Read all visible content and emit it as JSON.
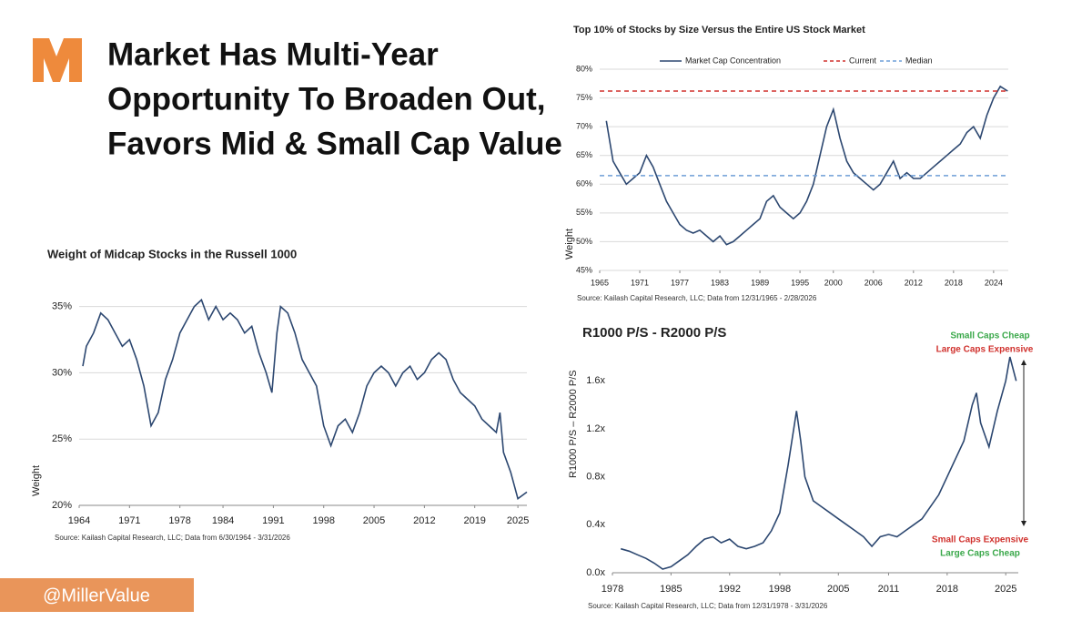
{
  "slide_title": [
    "Market Has Multi-Year",
    "Opportunity To Broaden Out,",
    "Favors Mid & Small Cap Value"
  ],
  "handle": "@MillerValue",
  "chart_data": [
    {
      "type": "line",
      "title": "Weight of Midcap Stocks in the Russell 1000",
      "y_label": "Weight",
      "source": "Source: Kailash Capital Research, LLC; Data from 6/30/1964 - 3/31/2026",
      "color": "#2c4770",
      "grid": true,
      "xlim": [
        1964,
        2026.25
      ],
      "xticks": [
        1964,
        1971,
        1978,
        1984,
        1991,
        1998,
        2005,
        2012,
        2019,
        2025
      ],
      "ylim": [
        20,
        36
      ],
      "yticks": [
        {
          "value": 20,
          "label": "20%"
        },
        {
          "value": 25,
          "label": "25%"
        },
        {
          "value": 30,
          "label": "30%"
        },
        {
          "value": 35,
          "label": "35%"
        }
      ],
      "x": [
        1964.5,
        1965,
        1966,
        1967,
        1968,
        1969,
        1970,
        1971,
        1972,
        1973,
        1974,
        1975,
        1976,
        1977,
        1978,
        1979,
        1980,
        1981,
        1982,
        1983,
        1984,
        1985,
        1986,
        1987,
        1988,
        1989,
        1990,
        1990.8,
        1991.5,
        1992,
        1993,
        1994,
        1995,
        1996,
        1997,
        1998,
        1999,
        2000,
        2001,
        2002,
        2003,
        2004,
        2005,
        2006,
        2007,
        2008,
        2009,
        2010,
        2011,
        2012,
        2013,
        2014,
        2015,
        2016,
        2017,
        2018,
        2019,
        2020,
        2021,
        2022,
        2022.5,
        2023,
        2024,
        2025,
        2026.25
      ],
      "values": [
        30.5,
        32,
        33,
        34.5,
        34,
        33,
        32,
        32.5,
        31,
        29,
        26,
        27,
        29.5,
        31,
        33,
        34,
        35,
        35.5,
        34,
        35,
        34,
        34.5,
        34,
        33,
        33.5,
        31.5,
        30,
        28.5,
        33,
        35,
        34.5,
        33,
        31,
        30,
        29,
        26,
        24.5,
        26,
        26.5,
        25.5,
        27,
        29,
        30,
        30.5,
        30,
        29,
        30,
        30.5,
        29.5,
        30,
        31,
        31.5,
        31,
        29.5,
        28.5,
        28,
        27.5,
        26.5,
        26,
        25.5,
        27,
        24,
        22.5,
        20.5,
        21
      ]
    },
    {
      "type": "line",
      "title": "Top 10% of Stocks by Size Versus the Entire US Stock Market",
      "y_label": "Weight",
      "source": "Source: Kailash Capital Research, LLC; Data from 12/31/1965 - 2/28/2026",
      "grid": true,
      "xlim": [
        1965,
        2026.2
      ],
      "xticks": [
        1965,
        1971,
        1977,
        1983,
        1989,
        1995,
        2000,
        2006,
        2012,
        2018,
        2024
      ],
      "ylim": [
        45,
        80
      ],
      "yticks": [
        {
          "value": 45,
          "label": "45%"
        },
        {
          "value": 50,
          "label": "50%"
        },
        {
          "value": 55,
          "label": "55%"
        },
        {
          "value": 60,
          "label": "60%"
        },
        {
          "value": 65,
          "label": "65%"
        },
        {
          "value": 70,
          "label": "70%"
        },
        {
          "value": 75,
          "label": "75%"
        },
        {
          "value": 80,
          "label": "80%"
        }
      ],
      "x": [
        1966,
        1967,
        1968,
        1969,
        1970,
        1971,
        1972,
        1973,
        1974,
        1975,
        1976,
        1977,
        1978,
        1979,
        1980,
        1981,
        1982,
        1983,
        1984,
        1985,
        1986,
        1987,
        1988,
        1989,
        1990,
        1991,
        1992,
        1993,
        1994,
        1995,
        1996,
        1997,
        1998,
        1999,
        2000,
        2001,
        2002,
        2003,
        2004,
        2005,
        2006,
        2007,
        2008,
        2009,
        2010,
        2011,
        2012,
        2013,
        2014,
        2015,
        2016,
        2017,
        2018,
        2019,
        2020,
        2021,
        2022,
        2023,
        2024,
        2025,
        2026.1
      ],
      "series": [
        {
          "name": "Market Cap Concentration",
          "color": "#2c4770",
          "values": [
            71,
            64,
            62,
            60,
            61,
            62,
            65,
            63,
            60,
            57,
            55,
            53,
            52,
            51.5,
            52,
            51,
            50,
            51,
            49.5,
            50,
            51,
            52,
            53,
            54,
            57,
            58,
            56,
            55,
            54,
            55,
            57,
            60,
            65,
            70,
            73,
            68,
            64,
            62,
            61,
            60,
            59,
            60,
            62,
            64,
            61,
            62,
            61,
            61,
            62,
            63,
            64,
            65,
            66,
            67,
            69,
            70,
            68,
            72,
            75,
            77,
            76.2
          ]
        },
        {
          "name": "Current",
          "color": "#d0312d",
          "dashed": true,
          "value": 76.2
        },
        {
          "name": "Median",
          "color": "#6f9fd8",
          "dashed": true,
          "value": 61.5
        }
      ]
    },
    {
      "type": "line",
      "title": "R1000 P/S - R2000 P/S",
      "y_label": "R1000 P/S – R2000 P/S",
      "source": "Source: Kailash Capital Research, LLC; Data from 12/31/1978 - 3/31/2026",
      "color": "#2c4770",
      "grid": false,
      "xlim": [
        1978,
        2026.5
      ],
      "xticks": [
        1978,
        1985,
        1992,
        1998,
        2005,
        2011,
        2018,
        2025
      ],
      "ylim": [
        0,
        1.8
      ],
      "yticks": [
        {
          "value": 0,
          "label": "0.0x"
        },
        {
          "value": 0.4,
          "label": "0.4x"
        },
        {
          "value": 0.8,
          "label": "0.8x"
        },
        {
          "value": 1.2,
          "label": "1.2x"
        },
        {
          "value": 1.6,
          "label": "1.6x"
        }
      ],
      "x": [
        1979,
        1980,
        1981,
        1982,
        1983,
        1984,
        1985,
        1986,
        1987,
        1988,
        1989,
        1990,
        1991,
        1992,
        1993,
        1994,
        1995,
        1996,
        1997,
        1998,
        1999,
        2000,
        2000.5,
        2001,
        2002,
        2003,
        2004,
        2005,
        2006,
        2007,
        2008,
        2009,
        2010,
        2011,
        2012,
        2013,
        2014,
        2015,
        2016,
        2017,
        2018,
        2019,
        2020,
        2021,
        2021.5,
        2022,
        2023,
        2024,
        2025,
        2025.5,
        2026.25
      ],
      "values": [
        0.2,
        0.18,
        0.15,
        0.12,
        0.08,
        0.03,
        0.05,
        0.1,
        0.15,
        0.22,
        0.28,
        0.3,
        0.25,
        0.28,
        0.22,
        0.2,
        0.22,
        0.25,
        0.35,
        0.5,
        0.9,
        1.35,
        1.1,
        0.8,
        0.6,
        0.55,
        0.5,
        0.45,
        0.4,
        0.35,
        0.3,
        0.22,
        0.3,
        0.32,
        0.3,
        0.35,
        0.4,
        0.45,
        0.55,
        0.65,
        0.8,
        0.95,
        1.1,
        1.4,
        1.5,
        1.25,
        1.05,
        1.35,
        1.6,
        1.8,
        1.6
      ],
      "annotations": [
        {
          "text": "Small Caps Cheap",
          "color": "#3aa84a"
        },
        {
          "text": "Large Caps Expensive",
          "color": "#d0312d"
        },
        {
          "text": "Small Caps Expensive",
          "color": "#d0312d"
        },
        {
          "text": "Large Caps Cheap",
          "color": "#3aa84a"
        }
      ]
    }
  ]
}
